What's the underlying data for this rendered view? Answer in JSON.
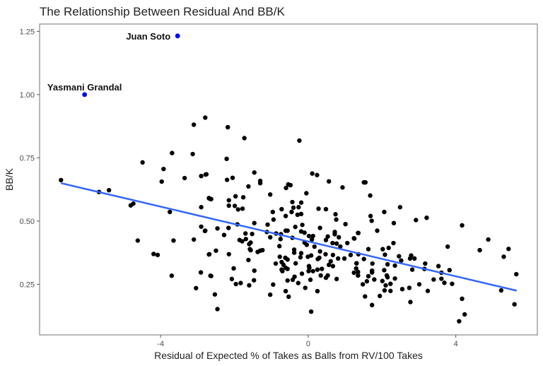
{
  "chart_data": {
    "type": "scatter",
    "title": "The Relationship Between Residual And BB/K",
    "xlabel": "Residual of Expected % of Takes as Balls from RV/100 Takes",
    "ylabel": "BB/K",
    "xlim": [
      -7.28,
      6.21
    ],
    "ylim": [
      0.05,
      1.279
    ],
    "x_ticks": [
      "-4",
      "0",
      "4"
    ],
    "x_tick_values": [
      -4,
      0,
      4
    ],
    "y_ticks": [
      "0.25",
      "0.50",
      "0.75",
      "1.00",
      "1.25"
    ],
    "y_tick_values": [
      0.25,
      0.5,
      0.75,
      1.0,
      1.25
    ],
    "grid": false,
    "point_color": "#000000",
    "highlight_color": "#0000ff",
    "trend_color": "#3366ff",
    "trend_line": {
      "x": [
        -6.7,
        5.65
      ],
      "y": [
        0.65,
        0.225
      ]
    },
    "highlighted": [
      {
        "label": "Juan Soto",
        "x": -3.54,
        "y": 1.232
      },
      {
        "label": "Yasmani Grandal",
        "x": -6.06,
        "y": 1.0
      }
    ],
    "points": [
      [
        -6.7,
        0.662
      ],
      [
        -5.67,
        0.615
      ],
      [
        -5.4,
        0.622
      ],
      [
        -4.81,
        0.562
      ],
      [
        -4.74,
        0.569
      ],
      [
        -4.49,
        0.732
      ],
      [
        -3.75,
        0.536
      ],
      [
        -3.69,
        0.769
      ],
      [
        -3.92,
        0.706
      ],
      [
        -3.97,
        0.656
      ],
      [
        -3.35,
        0.67
      ],
      [
        -3.13,
        0.765
      ],
      [
        -3.1,
        0.881
      ],
      [
        -2.79,
        0.909
      ],
      [
        -2.9,
        0.678
      ],
      [
        -2.78,
        0.684
      ],
      [
        -2.9,
        0.555
      ],
      [
        -2.69,
        0.59
      ],
      [
        -2.65,
        0.587
      ],
      [
        -2.9,
        0.478
      ],
      [
        -2.8,
        0.461
      ],
      [
        -4.62,
        0.423
      ],
      [
        -3.65,
        0.423
      ],
      [
        -3.1,
        0.427
      ],
      [
        -4.19,
        0.37
      ],
      [
        -4.08,
        0.366
      ],
      [
        -2.69,
        0.368
      ],
      [
        -3.7,
        0.284
      ],
      [
        -2.91,
        0.297
      ],
      [
        -2.65,
        0.284
      ],
      [
        -3.04,
        0.235
      ],
      [
        -2.18,
        0.871
      ],
      [
        -1.73,
        0.828
      ],
      [
        -0.24,
        0.818
      ],
      [
        -2.21,
        0.746
      ],
      [
        -2.76,
        0.685
      ],
      [
        -2.2,
        0.663
      ],
      [
        -2.05,
        0.671
      ],
      [
        -1.46,
        0.692
      ],
      [
        -1.3,
        0.659
      ],
      [
        -1.3,
        0.65
      ],
      [
        -1.62,
        0.637
      ],
      [
        0.11,
        0.688
      ],
      [
        0.24,
        0.682
      ],
      [
        0.56,
        0.657
      ],
      [
        0.93,
        0.633
      ],
      [
        -0.6,
        0.631
      ],
      [
        -0.54,
        0.645
      ],
      [
        -0.48,
        0.642
      ],
      [
        -0.05,
        0.61
      ],
      [
        -1.03,
        0.605
      ],
      [
        -2.69,
        0.591
      ],
      [
        -2.63,
        0.587
      ],
      [
        -1.97,
        0.598
      ],
      [
        -1.76,
        0.594
      ],
      [
        -2.15,
        0.582
      ],
      [
        -2.15,
        0.561
      ],
      [
        -1.99,
        0.56
      ],
      [
        -1.9,
        0.546
      ],
      [
        -1.78,
        0.549
      ],
      [
        -0.43,
        0.575
      ],
      [
        -0.19,
        0.573
      ],
      [
        -0.96,
        0.536
      ],
      [
        -0.72,
        0.547
      ],
      [
        -0.61,
        0.52
      ],
      [
        -0.45,
        0.536
      ],
      [
        -0.4,
        0.553
      ],
      [
        -0.29,
        0.525
      ],
      [
        -0.26,
        0.555
      ],
      [
        -0.19,
        0.528
      ],
      [
        0.28,
        0.549
      ],
      [
        0.48,
        0.547
      ],
      [
        0.74,
        0.527
      ],
      [
        0.76,
        0.506
      ],
      [
        1.01,
        0.488
      ],
      [
        -0.94,
        0.506
      ],
      [
        -1.46,
        0.492
      ],
      [
        -1.92,
        0.487
      ],
      [
        -1.1,
        0.486
      ],
      [
        -0.16,
        0.485
      ],
      [
        -0.35,
        0.477
      ],
      [
        0.32,
        0.473
      ],
      [
        -2.79,
        0.462
      ],
      [
        -2.46,
        0.471
      ],
      [
        -2.16,
        0.473
      ],
      [
        -2.28,
        0.445
      ],
      [
        -1.86,
        0.425
      ],
      [
        -1.79,
        0.42
      ],
      [
        -1.7,
        0.451
      ],
      [
        -1.69,
        0.429
      ],
      [
        -1.52,
        0.449
      ],
      [
        -1.6,
        0.409
      ],
      [
        -1.56,
        0.415
      ],
      [
        -1.58,
        0.389
      ],
      [
        -1.56,
        0.385
      ],
      [
        -1.37,
        0.378
      ],
      [
        -1.3,
        0.383
      ],
      [
        -1.24,
        0.385
      ],
      [
        -1.12,
        0.457
      ],
      [
        -1.03,
        0.436
      ],
      [
        -0.87,
        0.451
      ],
      [
        -0.74,
        0.448
      ],
      [
        -0.75,
        0.429
      ],
      [
        -0.61,
        0.462
      ],
      [
        -0.56,
        0.462
      ],
      [
        -0.43,
        0.434
      ],
      [
        -0.19,
        0.459
      ],
      [
        -0.1,
        0.454
      ],
      [
        0.02,
        0.441
      ],
      [
        0.13,
        0.441
      ],
      [
        -0.1,
        0.415
      ],
      [
        -0.04,
        0.406
      ],
      [
        0.17,
        0.399
      ],
      [
        0.1,
        0.427
      ],
      [
        0.48,
        0.425
      ],
      [
        0.53,
        0.439
      ],
      [
        0.72,
        0.457
      ],
      [
        0.72,
        0.448
      ],
      [
        0.83,
        0.436
      ],
      [
        0.66,
        0.413
      ],
      [
        0.77,
        0.411
      ],
      [
        0.87,
        0.399
      ],
      [
        1.06,
        0.413
      ],
      [
        1.24,
        0.432
      ],
      [
        1.35,
        0.453
      ],
      [
        -0.78,
        0.401
      ],
      [
        -0.38,
        0.387
      ],
      [
        -0.38,
        0.375
      ],
      [
        -0.19,
        0.373
      ],
      [
        -0.21,
        0.357
      ],
      [
        -0.01,
        0.359
      ],
      [
        0.08,
        0.364
      ],
      [
        0.32,
        0.38
      ],
      [
        0.47,
        0.369
      ],
      [
        0.67,
        0.366
      ],
      [
        0.81,
        0.352
      ],
      [
        0.98,
        0.352
      ],
      [
        1.15,
        0.366
      ],
      [
        -0.77,
        0.359
      ],
      [
        -0.62,
        0.355
      ],
      [
        -0.56,
        0.348
      ],
      [
        -0.34,
        0.333
      ],
      [
        0.26,
        0.35
      ],
      [
        0.3,
        0.355
      ],
      [
        -0.88,
        0.332
      ],
      [
        -0.72,
        0.338
      ],
      [
        -0.67,
        0.327
      ],
      [
        -0.61,
        0.315
      ],
      [
        -0.56,
        0.311
      ],
      [
        -0.72,
        0.308
      ],
      [
        -0.7,
        0.302
      ],
      [
        0.02,
        0.322
      ],
      [
        0.03,
        0.315
      ],
      [
        0.13,
        0.302
      ],
      [
        0.01,
        0.302
      ],
      [
        0.25,
        0.308
      ],
      [
        0.37,
        0.311
      ],
      [
        0.61,
        0.341
      ],
      [
        0.67,
        0.322
      ],
      [
        0.56,
        0.327
      ],
      [
        0.53,
        0.285
      ],
      [
        0.48,
        0.276
      ],
      [
        0.34,
        0.285
      ],
      [
        0.06,
        0.268
      ],
      [
        -0.17,
        0.292
      ],
      [
        -0.37,
        0.28
      ],
      [
        -0.42,
        0.268
      ],
      [
        -0.56,
        0.265
      ],
      [
        -0.27,
        0.255
      ],
      [
        -0.08,
        0.236
      ],
      [
        0.25,
        0.223
      ],
      [
        0.77,
        0.271
      ],
      [
        1.24,
        0.296
      ],
      [
        1.31,
        0.333
      ],
      [
        1.35,
        0.285
      ],
      [
        1.3,
        0.313
      ],
      [
        -0.61,
        0.223
      ],
      [
        -0.53,
        0.201
      ],
      [
        -1.03,
        0.209
      ],
      [
        -0.95,
        0.249
      ],
      [
        -1.46,
        0.304
      ],
      [
        -1.47,
        0.266
      ],
      [
        -1.6,
        0.246
      ],
      [
        -1.83,
        0.255
      ],
      [
        -1.96,
        0.251
      ],
      [
        -2.07,
        0.271
      ],
      [
        -2.02,
        0.313
      ],
      [
        -1.62,
        0.346
      ],
      [
        -2.15,
        0.369
      ],
      [
        -2.5,
        0.383
      ],
      [
        -2.68,
        0.369
      ],
      [
        -2.63,
        0.283
      ],
      [
        -2.53,
        0.21
      ],
      [
        -2.46,
        0.152
      ],
      [
        0.08,
        0.142
      ],
      [
        1.51,
        0.653
      ],
      [
        1.55,
        0.653
      ],
      [
        1.68,
        0.601
      ],
      [
        2.06,
        0.536
      ],
      [
        2.49,
        0.555
      ],
      [
        1.69,
        0.52
      ],
      [
        1.72,
        0.501
      ],
      [
        2.32,
        0.492
      ],
      [
        2.92,
        0.504
      ],
      [
        3.21,
        0.513
      ],
      [
        1.87,
        0.462
      ],
      [
        1.36,
        0.453
      ],
      [
        1.25,
        0.431
      ],
      [
        4.17,
        0.483
      ],
      [
        4.88,
        0.427
      ],
      [
        4.65,
        0.385
      ],
      [
        5.43,
        0.39
      ],
      [
        5.3,
        0.359
      ],
      [
        5.64,
        0.29
      ],
      [
        5.23,
        0.226
      ],
      [
        5.59,
        0.171
      ],
      [
        3.78,
        0.399
      ],
      [
        2.31,
        0.413
      ],
      [
        2.18,
        0.394
      ],
      [
        2.02,
        0.389
      ],
      [
        2.08,
        0.367
      ],
      [
        1.63,
        0.389
      ],
      [
        1.36,
        0.369
      ],
      [
        1.51,
        0.35
      ],
      [
        1.31,
        0.333
      ],
      [
        1.74,
        0.332
      ],
      [
        1.73,
        0.304
      ],
      [
        1.73,
        0.297
      ],
      [
        1.35,
        0.299
      ],
      [
        1.35,
        0.285
      ],
      [
        1.63,
        0.282
      ],
      [
        1.79,
        0.269
      ],
      [
        1.59,
        0.262
      ],
      [
        1.48,
        0.25
      ],
      [
        2.15,
        0.329
      ],
      [
        2.06,
        0.306
      ],
      [
        2.13,
        0.285
      ],
      [
        2.15,
        0.278
      ],
      [
        2.35,
        0.273
      ],
      [
        2.01,
        0.263
      ],
      [
        2.1,
        0.246
      ],
      [
        2.23,
        0.252
      ],
      [
        2.07,
        0.226
      ],
      [
        2.23,
        0.224
      ],
      [
        1.94,
        0.204
      ],
      [
        1.54,
        0.202
      ],
      [
        1.73,
        0.168
      ],
      [
        2.46,
        0.361
      ],
      [
        2.52,
        0.344
      ],
      [
        2.35,
        0.324
      ],
      [
        2.79,
        0.364
      ],
      [
        2.76,
        0.352
      ],
      [
        2.88,
        0.352
      ],
      [
        2.82,
        0.308
      ],
      [
        2.55,
        0.231
      ],
      [
        2.74,
        0.236
      ],
      [
        3.01,
        0.25
      ],
      [
        3.24,
        0.224
      ],
      [
        2.77,
        0.18
      ],
      [
        3.17,
        0.332
      ],
      [
        3.15,
        0.311
      ],
      [
        3.53,
        0.322
      ],
      [
        3.61,
        0.296
      ],
      [
        3.83,
        0.306
      ],
      [
        3.4,
        0.269
      ],
      [
        3.61,
        0.272
      ],
      [
        3.69,
        0.256
      ],
      [
        3.9,
        0.252
      ],
      [
        4.17,
        0.193
      ],
      [
        4.24,
        0.131
      ],
      [
        4.09,
        0.104
      ]
    ]
  }
}
